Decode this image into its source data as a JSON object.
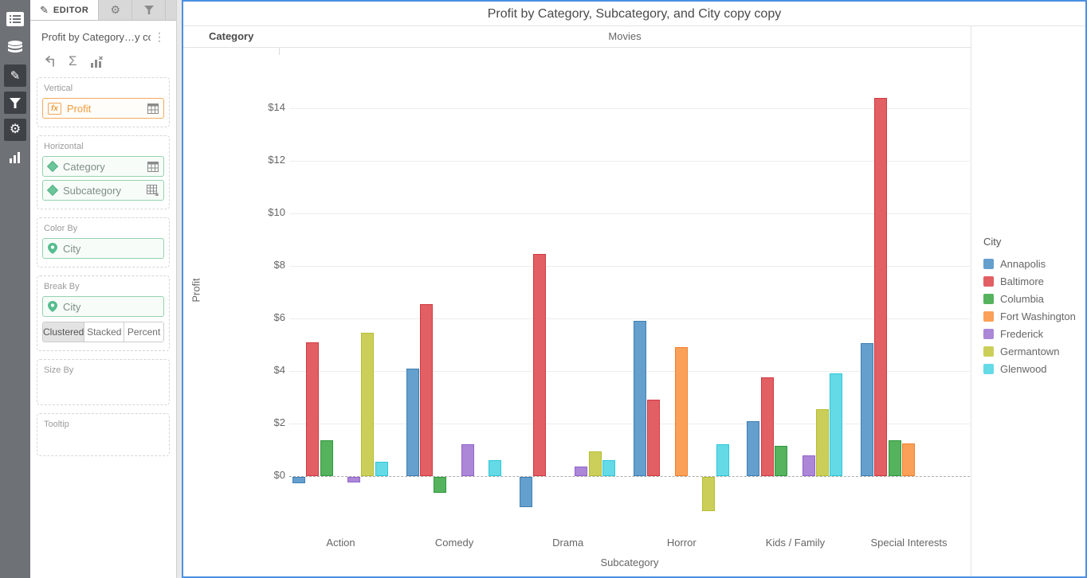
{
  "icons": {
    "fx": "fx",
    "sigma": "Σ",
    "kebab": "⋮",
    "pencil": "✎",
    "gear": "⚙"
  },
  "left_rail": {
    "items": [
      "widget-list",
      "data-sources",
      "edit-pencil",
      "filters-funnel",
      "settings-gear",
      "chart-bars"
    ]
  },
  "editor": {
    "tabs": {
      "editor_label": "EDITOR"
    },
    "widget_title": "Profit by Category…y copy",
    "sections": {
      "vertical": {
        "label": "Vertical",
        "field": "Profit"
      },
      "horizontal": {
        "label": "Horizontal",
        "fields": [
          "Category",
          "Subcategory"
        ]
      },
      "color_by": {
        "label": "Color By",
        "field": "City"
      },
      "break_by": {
        "label": "Break By",
        "field": "City",
        "modes": [
          "Clustered",
          "Stacked",
          "Percent"
        ],
        "active_mode": "Clustered"
      },
      "size_by": {
        "label": "Size By"
      },
      "tooltip": {
        "label": "Tooltip"
      }
    }
  },
  "chart_data": {
    "type": "bar",
    "title": "Profit by Category, Subcategory, and City copy copy",
    "category_header": "Category",
    "panel_header": "Movies",
    "xlabel": "Subcategory",
    "ylabel": "Profit",
    "categories": [
      "Action",
      "Comedy",
      "Drama",
      "Horror",
      "Kids / Family",
      "Special Interests"
    ],
    "series": [
      {
        "name": "Annapolis",
        "fill": "#649fce",
        "border": "#3f7fb3",
        "values": [
          -0.25,
          4.1,
          -1.15,
          5.9,
          2.1,
          5.05
        ]
      },
      {
        "name": "Baltimore",
        "fill": "#e25f63",
        "border": "#d23940",
        "values": [
          5.1,
          6.55,
          8.45,
          2.9,
          3.75,
          14.4
        ]
      },
      {
        "name": "Columbia",
        "fill": "#55b25d",
        "border": "#2f9a3e",
        "values": [
          1.35,
          -0.6,
          null,
          null,
          1.15,
          1.35
        ]
      },
      {
        "name": "Fort Washington",
        "fill": "#faa058",
        "border": "#f2802e",
        "values": [
          null,
          null,
          null,
          4.9,
          null,
          1.25
        ]
      },
      {
        "name": "Frederick",
        "fill": "#ac87d8",
        "border": "#9263c8",
        "values": [
          -0.2,
          1.2,
          0.35,
          null,
          0.8,
          null
        ]
      },
      {
        "name": "Germantown",
        "fill": "#cbcf5a",
        "border": "#b7bd2f",
        "values": [
          5.45,
          null,
          0.95,
          -1.3,
          2.55,
          null
        ]
      },
      {
        "name": "Glenwood",
        "fill": "#64dae6",
        "border": "#2ec6d8",
        "values": [
          0.55,
          0.6,
          0.6,
          1.2,
          3.9,
          null
        ]
      }
    ],
    "y_ticks": [
      0,
      2,
      4,
      6,
      8,
      10,
      12,
      14
    ],
    "y_tick_labels": [
      "$0",
      "$2",
      "$4",
      "$6",
      "$8",
      "$10",
      "$12",
      "$14"
    ],
    "ylim": [
      -1.9,
      16.3
    ],
    "grid": true,
    "legend_title": "City",
    "legend_position": "right"
  }
}
